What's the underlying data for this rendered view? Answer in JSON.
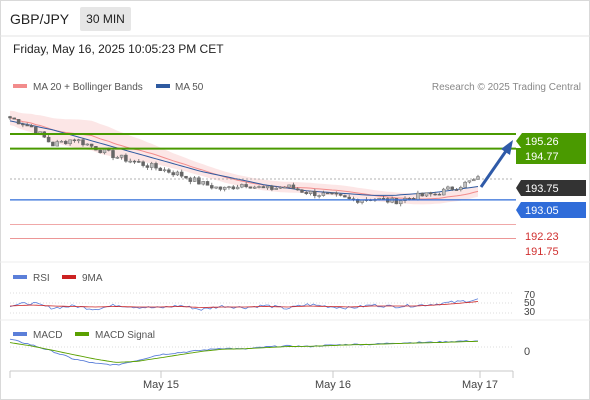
{
  "header": {
    "symbol": "GBP/JPY",
    "timeframe": "30 MIN",
    "datetime": "Friday, May 16, 2025 10:05:23 PM CET",
    "credit": "Research © 2025 Trading Central"
  },
  "legend": {
    "bollinger": "MA 20 + Bollinger Bands",
    "ma50": "MA 50",
    "rsi": "RSI",
    "rsi_ma": "9MA",
    "macd": "MACD",
    "macd_signal": "MACD Signal"
  },
  "colors": {
    "bollinger": "#f28c8c",
    "ma50": "#2e5aa0",
    "up_candle": "#bfbfbf",
    "down_candle": "#666666",
    "resistance": "#4a9a00",
    "support": "#2f6cd9",
    "minor_support": "#e05050",
    "current": "#333333",
    "rsi": "#5b7fd9",
    "rsi_ma": "#cc2222",
    "macd": "#5b7fd9",
    "macd_signal": "#5aa000"
  },
  "chart_data": [
    {
      "type": "candlestick",
      "title": "GBP/JPY",
      "x_ticks": [
        "May 15",
        "May 16",
        "May 17"
      ],
      "ylim": [
        191.1,
        196.4
      ],
      "price_points": [
        195.8,
        195.5,
        194.9,
        195.1,
        194.8,
        194.5,
        194.3,
        194.1,
        193.9,
        193.6,
        193.4,
        193.6,
        193.4,
        193.5,
        193.3,
        193.2,
        193.05,
        193.1,
        193.0,
        193.15,
        193.25,
        193.5,
        193.75
      ],
      "ma50_points": [
        195.7,
        195.55,
        195.4,
        195.2,
        195.0,
        194.8,
        194.6,
        194.4,
        194.2,
        194.0,
        193.85,
        193.7,
        193.55,
        193.45,
        193.35,
        193.3,
        193.25,
        193.2,
        193.2,
        193.25,
        193.3,
        193.4,
        193.5
      ],
      "levels": [
        {
          "label": "195.26",
          "value": 195.26,
          "kind": "resistance"
        },
        {
          "label": "194.77",
          "value": 194.77,
          "kind": "resistance"
        },
        {
          "label": "193.75",
          "value": 193.75,
          "kind": "current"
        },
        {
          "label": "193.05",
          "value": 193.05,
          "kind": "support"
        },
        {
          "label": "192.23",
          "value": 192.23,
          "kind": "minor_support"
        },
        {
          "label": "191.75",
          "value": 191.75,
          "kind": "minor_support"
        }
      ]
    },
    {
      "type": "line",
      "series": [
        {
          "name": "RSI"
        },
        {
          "name": "9MA"
        }
      ],
      "ylim": [
        20,
        80
      ],
      "y_ticks": [
        "70",
        "50",
        "30"
      ],
      "rsi_points": [
        45,
        50,
        40,
        44,
        38,
        46,
        42,
        40,
        45,
        37,
        44,
        41,
        45,
        39,
        47,
        43,
        40,
        46,
        43,
        45,
        48,
        52,
        57
      ],
      "rsi_ma_points": [
        44,
        46,
        44,
        43,
        42,
        43,
        42,
        42,
        43,
        41,
        42,
        42,
        43,
        42,
        44,
        43,
        42,
        44,
        44,
        44,
        46,
        49,
        53
      ]
    },
    {
      "type": "line",
      "series": [
        {
          "name": "MACD"
        },
        {
          "name": "MACD Signal"
        }
      ],
      "ylim": [
        -1,
        1
      ],
      "y_ticks": [
        "0"
      ],
      "macd_points": [
        0.35,
        0.1,
        -0.2,
        -0.55,
        -0.75,
        -0.82,
        -0.6,
        -0.35,
        -0.25,
        -0.15,
        -0.05,
        -0.1,
        0.0,
        0.05,
        0.02,
        0.08,
        0.12,
        0.12,
        0.18,
        0.2,
        0.22,
        0.26,
        0.28
      ],
      "signal_points": [
        0.2,
        0.05,
        -0.15,
        -0.35,
        -0.55,
        -0.7,
        -0.65,
        -0.5,
        -0.35,
        -0.2,
        -0.1,
        -0.08,
        -0.03,
        0.02,
        0.03,
        0.06,
        0.1,
        0.12,
        0.15,
        0.18,
        0.2,
        0.23,
        0.26
      ]
    }
  ]
}
